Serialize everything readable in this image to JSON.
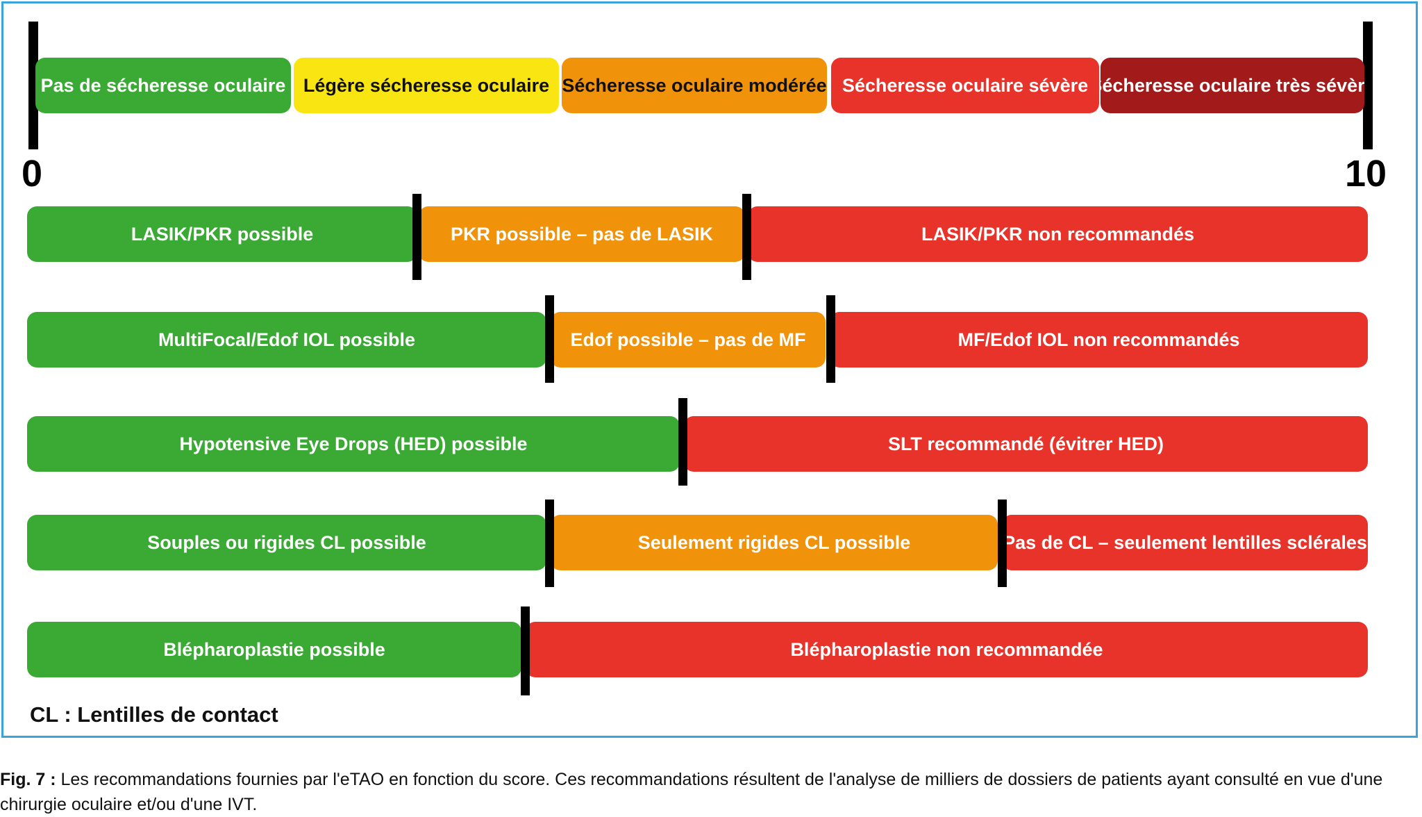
{
  "colors": {
    "green": "#3aaa35",
    "yellow": "#f9e512",
    "orange": "#f0920a",
    "red": "#e8332b",
    "dark_red": "#a31a1a",
    "frame": "#3aa3d9"
  },
  "scale": {
    "min_label": "0",
    "max_label": "10",
    "severity_levels": [
      "Pas de sécheresse oculaire",
      "Légère sécheresse oculaire",
      "Sécheresse oculaire modérée",
      "Sécheresse oculaire sévère",
      "Sécheresse oculaire très sévère"
    ]
  },
  "recommendations": [
    {
      "segments": [
        {
          "label": "LASIK/PKR possible",
          "color": "green"
        },
        {
          "label": "PKR possible – pas de LASIK",
          "color": "orange"
        },
        {
          "label": "LASIK/PKR non recommandés",
          "color": "red"
        }
      ]
    },
    {
      "segments": [
        {
          "label": "MultiFocal/Edof IOL possible",
          "color": "green"
        },
        {
          "label": "Edof possible – pas de MF",
          "color": "orange"
        },
        {
          "label": "MF/Edof IOL non recommandés",
          "color": "red"
        }
      ]
    },
    {
      "segments": [
        {
          "label": "Hypotensive Eye Drops (HED) possible",
          "color": "green"
        },
        {
          "label": "SLT recommandé (évitrer HED)",
          "color": "red"
        }
      ]
    },
    {
      "segments": [
        {
          "label": "Souples ou rigides CL possible",
          "color": "green"
        },
        {
          "label": "Seulement rigides CL possible",
          "color": "orange"
        },
        {
          "label": "Pas de CL – seulement lentilles sclérales",
          "color": "red"
        }
      ]
    },
    {
      "segments": [
        {
          "label": "Blépharoplastie possible",
          "color": "green"
        },
        {
          "label": "Blépharoplastie non recommandée",
          "color": "red"
        }
      ]
    }
  ],
  "legend_note": "CL : Lentilles de contact",
  "caption": {
    "label": "Fig. 7 :",
    "text": "Les recommandations fournies par l'eTAO en fonction du score. Ces recommandations résultent de l'analyse de milliers de dossiers de patients ayant consulté en vue d'une chirurgie oculaire et/ou d'une IVT."
  }
}
